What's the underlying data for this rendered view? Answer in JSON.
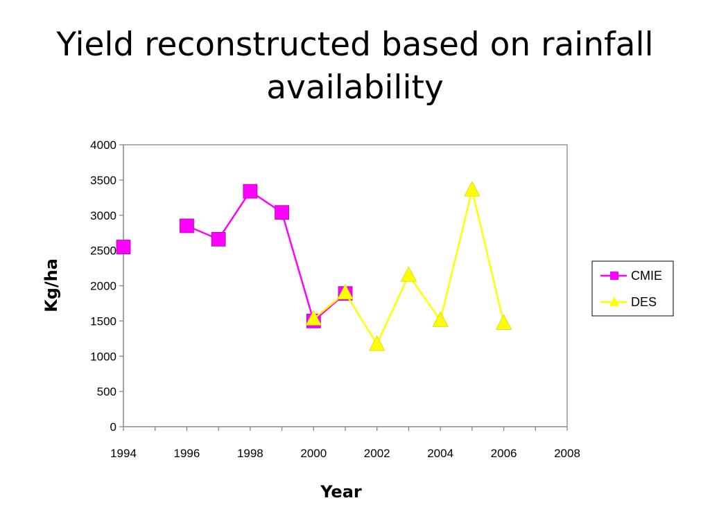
{
  "slide": {
    "title": "Yield reconstructed based on rainfall availability"
  },
  "chart_data": {
    "type": "line",
    "xlabel": "Year",
    "ylabel": "Kg/ha",
    "xlim": [
      1994,
      2008
    ],
    "ylim": [
      0,
      4000
    ],
    "x_ticks": [
      1994,
      1996,
      1998,
      2000,
      2002,
      2004,
      2006,
      2008
    ],
    "y_ticks": [
      0,
      500,
      1000,
      1500,
      2000,
      2500,
      3000,
      3500,
      4000
    ],
    "grid": false,
    "legend_position": "right",
    "series": [
      {
        "name": "CMIE",
        "color": "#ff00ff",
        "marker": "square",
        "points": [
          {
            "x": 1994,
            "y": 2550
          },
          {
            "x": 1996,
            "y": 2850
          },
          {
            "x": 1997,
            "y": 2660
          },
          {
            "x": 1998,
            "y": 3340
          },
          {
            "x": 1999,
            "y": 3040
          },
          {
            "x": 2000,
            "y": 1500
          },
          {
            "x": 2001,
            "y": 1890
          }
        ],
        "segments": [
          [
            1,
            2,
            3,
            4,
            5,
            6
          ]
        ]
      },
      {
        "name": "DES",
        "color": "#ffff00",
        "marker": "triangle",
        "points": [
          {
            "x": 2000,
            "y": 1530
          },
          {
            "x": 2001,
            "y": 1900
          },
          {
            "x": 2002,
            "y": 1170
          },
          {
            "x": 2003,
            "y": 2150
          },
          {
            "x": 2004,
            "y": 1510
          },
          {
            "x": 2005,
            "y": 3360
          },
          {
            "x": 2006,
            "y": 1470
          }
        ],
        "segments": [
          [
            0,
            1,
            2,
            3,
            4,
            5,
            6
          ]
        ]
      }
    ]
  }
}
